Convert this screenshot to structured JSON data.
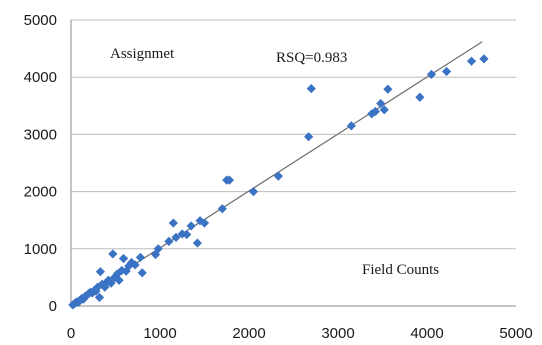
{
  "chart_data": {
    "type": "scatter",
    "xlim": [
      0,
      5000
    ],
    "ylim": [
      0,
      5000
    ],
    "x_ticks": [
      0,
      1000,
      2000,
      3000,
      4000,
      5000
    ],
    "y_ticks": [
      0,
      1000,
      2000,
      3000,
      4000,
      5000
    ],
    "grid": "horizontal",
    "legend": "none",
    "annotations": {
      "assignment_label": "Assignmet",
      "rsq_label": "RSQ=0.983",
      "x_title": "Field Counts"
    },
    "marker_color": "#3a73c4",
    "fit_line_color": "#6f6f6f",
    "fit_line": {
      "from": [
        0,
        20
      ],
      "to": [
        4620,
        4620
      ]
    },
    "points": [
      [
        20,
        20
      ],
      [
        40,
        40
      ],
      [
        60,
        70
      ],
      [
        80,
        60
      ],
      [
        100,
        100
      ],
      [
        120,
        130
      ],
      [
        140,
        120
      ],
      [
        160,
        170
      ],
      [
        180,
        190
      ],
      [
        200,
        220
      ],
      [
        220,
        240
      ],
      [
        240,
        230
      ],
      [
        260,
        270
      ],
      [
        280,
        260
      ],
      [
        300,
        330
      ],
      [
        320,
        150
      ],
      [
        330,
        600
      ],
      [
        350,
        380
      ],
      [
        380,
        330
      ],
      [
        400,
        410
      ],
      [
        420,
        450
      ],
      [
        450,
        400
      ],
      [
        470,
        910
      ],
      [
        490,
        500
      ],
      [
        520,
        560
      ],
      [
        540,
        450
      ],
      [
        570,
        620
      ],
      [
        590,
        830
      ],
      [
        620,
        610
      ],
      [
        650,
        700
      ],
      [
        680,
        760
      ],
      [
        720,
        720
      ],
      [
        780,
        850
      ],
      [
        800,
        580
      ],
      [
        950,
        900
      ],
      [
        980,
        1000
      ],
      [
        1100,
        1130
      ],
      [
        1150,
        1450
      ],
      [
        1180,
        1200
      ],
      [
        1250,
        1260
      ],
      [
        1300,
        1250
      ],
      [
        1350,
        1400
      ],
      [
        1420,
        1100
      ],
      [
        1450,
        1490
      ],
      [
        1500,
        1450
      ],
      [
        1700,
        1700
      ],
      [
        1750,
        2200
      ],
      [
        1780,
        2200
      ],
      [
        2050,
        2000
      ],
      [
        2330,
        2270
      ],
      [
        2670,
        2960
      ],
      [
        2700,
        3800
      ],
      [
        3150,
        3150
      ],
      [
        3380,
        3360
      ],
      [
        3420,
        3400
      ],
      [
        3480,
        3540
      ],
      [
        3520,
        3430
      ],
      [
        3560,
        3790
      ],
      [
        3920,
        3650
      ],
      [
        4050,
        4050
      ],
      [
        4220,
        4100
      ],
      [
        4500,
        4280
      ],
      [
        4640,
        4320
      ]
    ]
  }
}
